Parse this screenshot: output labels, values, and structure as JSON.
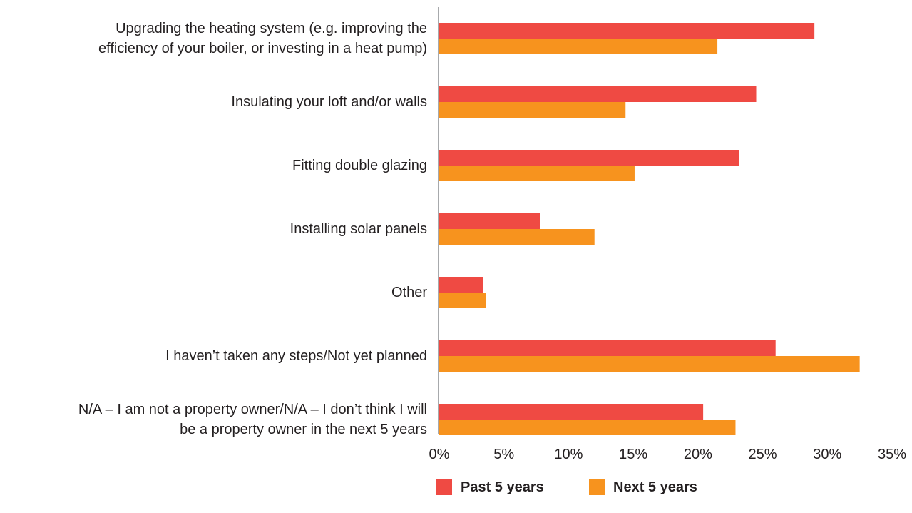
{
  "chart_data": {
    "type": "bar",
    "orientation": "horizontal",
    "categories": [
      "Upgrading the heating system (e.g. improving the\nefficiency of your boiler, or investing in a heat pump)",
      "Insulating your loft and/or walls",
      "Fitting double glazing",
      "Installing solar panels",
      "Other",
      "I haven’t taken any steps/Not yet planned",
      "N/A – I am not a property owner/N/A – I don’t think I will\nbe a property owner in the next 5 years"
    ],
    "series": [
      {
        "name": "Past 5 years",
        "color": "#ef4a43",
        "values": [
          29,
          24.5,
          23.2,
          7.8,
          3.4,
          26,
          20.4
        ]
      },
      {
        "name": "Next 5 years",
        "color": "#f7931e",
        "values": [
          21.5,
          14.4,
          15.1,
          12,
          3.6,
          32.5,
          22.9
        ]
      }
    ],
    "xticks": [
      "0%",
      "5%",
      "10%",
      "15%",
      "20%",
      "25%",
      "30%",
      "35%"
    ],
    "xlim": [
      0,
      35
    ],
    "legend_position": "bottom"
  }
}
